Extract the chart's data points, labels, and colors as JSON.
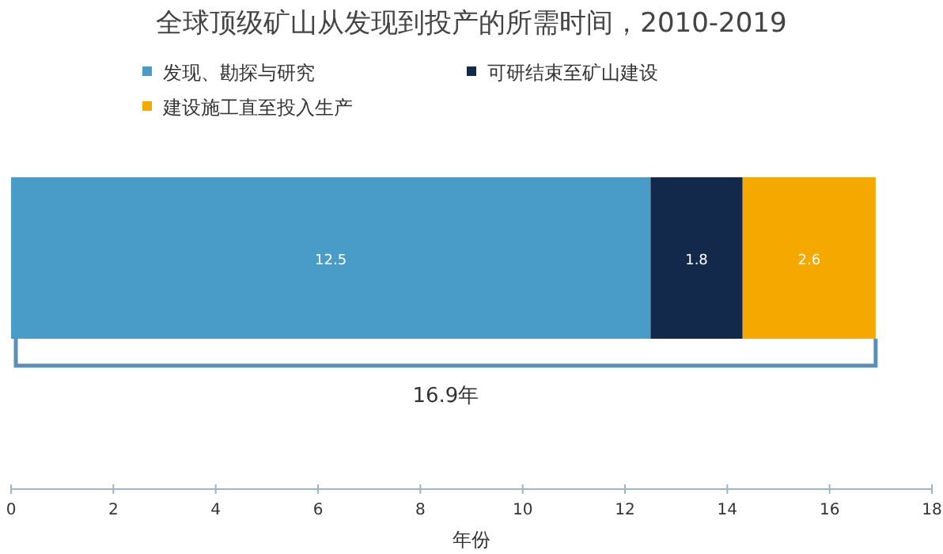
{
  "chart_data": {
    "type": "bar",
    "title": "全球顶级矿山从发现到投产的所需时间，2010-2019",
    "orientation": "horizontal",
    "stacked": true,
    "categories": [
      null
    ],
    "series": [
      {
        "name": "发现、勘探与研究",
        "color": "#4a9cc8",
        "values": [
          12.5
        ]
      },
      {
        "name": "可研结束至矿山建设",
        "color": "#13294b",
        "values": [
          1.8
        ]
      },
      {
        "name": "建设施工直至投入生产",
        "color": "#f5a800",
        "values": [
          2.6
        ]
      }
    ],
    "data_labels": true,
    "xlim": [
      0,
      18
    ],
    "xticks": [
      0,
      2,
      4,
      6,
      8,
      10,
      12,
      14,
      16,
      18
    ],
    "xlabel": "年份",
    "annotations": [
      "16.9年"
    ],
    "legend": "top left",
    "tick_labels": "x",
    "grid": false
  }
}
